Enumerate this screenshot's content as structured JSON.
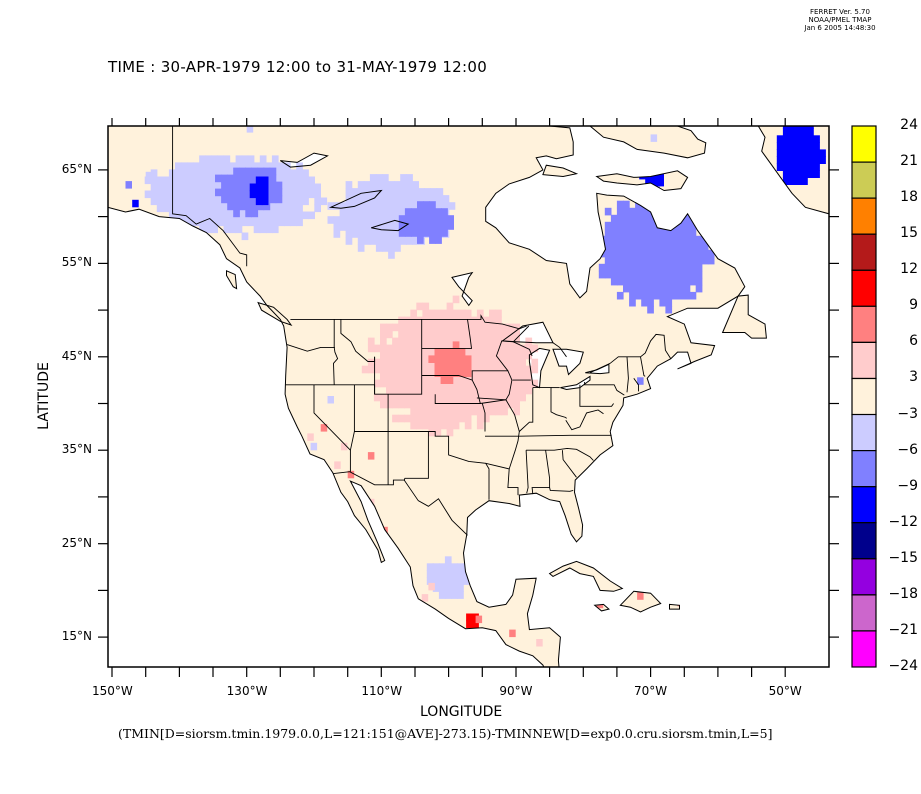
{
  "stamp": {
    "line1": "FERRET Ver. 5.70",
    "line2": "NOAA/PMEL TMAP",
    "line3": "Jan  6 2005 14:48:30"
  },
  "title": "TIME : 30-APR-1979 12:00 to 31-MAY-1979 12:00",
  "chart_data": {
    "type": "heatmap",
    "title": "TIME : 30-APR-1979 12:00 to 31-MAY-1979 12:00",
    "xlabel": "LONGITUDE",
    "ylabel": "LATITUDE",
    "caption": "(TMIN[D=siorsm.tmin.1979.0.0,L=121:151@AVE]-273.15)-TMINNEW[D=exp0.0.cru.siorsm.tmin,L=5]",
    "xlim": [
      -150.6,
      -43.5
    ],
    "ylim": [
      11.8,
      69.7
    ],
    "x_ticks": [
      -150,
      -145,
      -140,
      -135,
      -130,
      -125,
      -120,
      -115,
      -110,
      -105,
      -100,
      -95,
      -90,
      -85,
      -80,
      -75,
      -70,
      -65,
      -60,
      -55,
      -50
    ],
    "x_tick_labels": [
      {
        "value": -150,
        "label": "150°W"
      },
      {
        "value": -130,
        "label": "130°W"
      },
      {
        "value": -110,
        "label": "110°W"
      },
      {
        "value": -90,
        "label": "90°W"
      },
      {
        "value": -70,
        "label": "70°W"
      },
      {
        "value": -50,
        "label": "50°W"
      }
    ],
    "y_ticks": [
      15,
      20,
      25,
      30,
      35,
      40,
      45,
      50,
      55,
      60,
      65
    ],
    "y_tick_labels": [
      {
        "value": 65,
        "label": "65°N"
      },
      {
        "value": 55,
        "label": "55°N"
      },
      {
        "value": 45,
        "label": "45°N"
      },
      {
        "value": 35,
        "label": "35°N"
      },
      {
        "value": 25,
        "label": "25°N"
      },
      {
        "value": 15,
        "label": "15°N"
      }
    ],
    "colorbar": {
      "levels": [
        24,
        21,
        18,
        15,
        12,
        9,
        6,
        3,
        -3,
        -6,
        -9,
        -12,
        -15,
        -18,
        -21,
        -24
      ],
      "level_labels": [
        "24",
        "21",
        "18",
        "15",
        "12",
        "9",
        "6",
        "3",
        "−3",
        "−6",
        "−9",
        "−12",
        "−15",
        "−18",
        "−21",
        "−24"
      ],
      "colors": [
        "#ffff00",
        "#cccc55",
        "#ff8000",
        "#b41a1a",
        "#ff0000",
        "#ff8080",
        "#ffcccc",
        "#fff2dc",
        "#ccccff",
        "#8080ff",
        "#0000ff",
        "#00008c",
        "#9400e0",
        "#cc66cc",
        "#ff00ff"
      ]
    },
    "regions": [
      {
        "name": "land-neutral",
        "range": [
          -3,
          3
        ],
        "color": "#fff2dc"
      },
      {
        "name": "alaska-yukon-cool",
        "lon": [
          -145,
          -120
        ],
        "lat": [
          58,
          66
        ],
        "range": [
          -6,
          -3
        ],
        "color": "#ccccff"
      },
      {
        "name": "yukon-core",
        "lon": [
          -135,
          -125
        ],
        "lat": [
          60,
          65
        ],
        "range": [
          -9,
          -6
        ],
        "color": "#8080ff"
      },
      {
        "name": "yukon-min",
        "lon": [
          -130,
          -127
        ],
        "lat": [
          61,
          64
        ],
        "range": [
          -12,
          -9
        ],
        "color": "#0000ff"
      },
      {
        "name": "nwt-cool",
        "lon": [
          -118,
          -100
        ],
        "lat": [
          56,
          64
        ],
        "range": [
          -6,
          -3
        ],
        "color": "#ccccff"
      },
      {
        "name": "nwt-core",
        "lon": [
          -108,
          -100
        ],
        "lat": [
          57,
          61
        ],
        "range": [
          -9,
          -6
        ],
        "color": "#8080ff"
      },
      {
        "name": "quebec-cool",
        "lon": [
          -78,
          -62
        ],
        "lat": [
          50,
          62
        ],
        "range": [
          -9,
          -6
        ],
        "color": "#8080ff"
      },
      {
        "name": "baffin-min",
        "lon": [
          -72,
          -68
        ],
        "lat": [
          63,
          66
        ],
        "range": [
          -12,
          -9
        ],
        "color": "#0000ff"
      },
      {
        "name": "greenland-min",
        "lon": [
          -52,
          -45
        ],
        "lat": [
          63,
          70
        ],
        "range": [
          -15,
          -9
        ],
        "color": "#0000ff"
      },
      {
        "name": "plains-warm",
        "lon": [
          -112,
          -88
        ],
        "lat": [
          37,
          50
        ],
        "range": [
          3,
          6
        ],
        "color": "#ffcccc"
      },
      {
        "name": "dakotas-max",
        "lon": [
          -103,
          -97
        ],
        "lat": [
          42,
          46
        ],
        "range": [
          6,
          9
        ],
        "color": "#ff8080"
      },
      {
        "name": "mexico-cool",
        "lon": [
          -104,
          -97
        ],
        "lat": [
          19,
          23
        ],
        "range": [
          -6,
          -3
        ],
        "color": "#ccccff"
      },
      {
        "name": "oaxaca-max",
        "lon": [
          -98,
          -96
        ],
        "lat": [
          15.5,
          17
        ],
        "range": [
          9,
          12
        ],
        "color": "#ff0000"
      }
    ]
  }
}
